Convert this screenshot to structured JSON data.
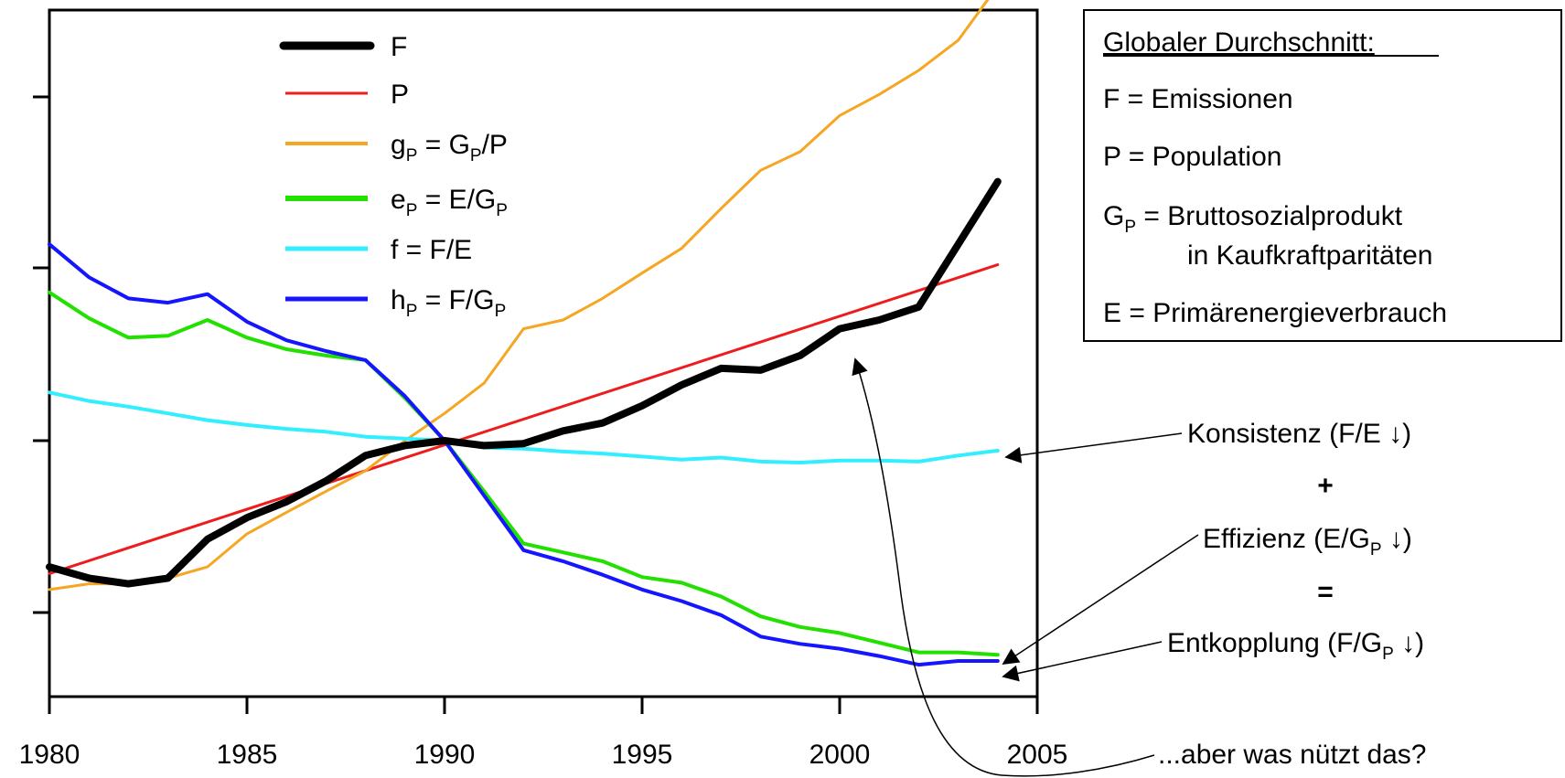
{
  "chart_data": {
    "type": "line",
    "xlim": [
      1980,
      2005
    ],
    "x_ticks": [
      "1980",
      "1985",
      "1990",
      "1995",
      "2000",
      "2005"
    ],
    "index_base_year": 1990,
    "index_base_value": 1.0,
    "y_scale": "log",
    "legend_position": "top-left inside",
    "grid": false,
    "series": [
      {
        "key": "F",
        "color": "#000000",
        "width": 8,
        "x": [
          1980,
          1981,
          1982,
          1983,
          1984,
          1985,
          1986,
          1987,
          1988,
          1989,
          1990,
          1991,
          1992,
          1993,
          1994,
          1995,
          1996,
          1997,
          1998,
          1999,
          2000,
          2001,
          2002,
          2003,
          2004
        ],
        "values": [
          0.88,
          0.87,
          0.865,
          0.87,
          0.905,
          0.925,
          0.94,
          0.96,
          0.985,
          0.995,
          1.0,
          0.995,
          0.997,
          1.01,
          1.018,
          1.036,
          1.058,
          1.076,
          1.074,
          1.09,
          1.12,
          1.13,
          1.145,
          1.22,
          1.3
        ]
      },
      {
        "key": "P",
        "color": "#ee1c1c",
        "width": 3,
        "x": [
          1980,
          2004
        ],
        "values": [
          0.874,
          1.195
        ]
      },
      {
        "key": "gP",
        "color": "#f5a623",
        "width": 3,
        "x": [
          1980,
          1981,
          1982,
          1983,
          1984,
          1985,
          1986,
          1987,
          1988,
          1989,
          1990,
          1991,
          1992,
          1993,
          1994,
          1995,
          1996,
          1997,
          1998,
          1999,
          2000,
          2001,
          2002,
          2003,
          2004
        ],
        "values": [
          0.86,
          0.865,
          0.865,
          0.87,
          0.88,
          0.91,
          0.93,
          0.95,
          0.97,
          1.0,
          1.028,
          1.06,
          1.12,
          1.13,
          1.155,
          1.185,
          1.215,
          1.265,
          1.315,
          1.34,
          1.39,
          1.42,
          1.455,
          1.5,
          1.585
        ]
      },
      {
        "key": "eP",
        "color": "#22e000",
        "width": 4,
        "x": [
          1980,
          1981,
          1982,
          1983,
          1984,
          1985,
          1986,
          1987,
          1988,
          1989,
          1990,
          1991,
          1992,
          1993,
          1994,
          1995,
          1996,
          1997,
          1998,
          1999,
          2000,
          2001,
          2002,
          2003,
          2004
        ],
        "values": [
          1.162,
          1.132,
          1.11,
          1.112,
          1.13,
          1.11,
          1.097,
          1.09,
          1.085,
          1.044,
          1.0,
          0.95,
          0.901,
          0.893,
          0.885,
          0.871,
          0.866,
          0.854,
          0.837,
          0.828,
          0.823,
          0.815,
          0.807,
          0.807,
          0.805
        ]
      },
      {
        "key": "f",
        "color": "#33eeff",
        "width": 4,
        "x": [
          1980,
          1981,
          1982,
          1983,
          1984,
          1985,
          1986,
          1987,
          1988,
          1989,
          1990,
          1991,
          1992,
          1993,
          1994,
          1995,
          1996,
          1997,
          1998,
          1999,
          2000,
          2001,
          2002,
          2003,
          2004
        ],
        "values": [
          1.05,
          1.041,
          1.035,
          1.028,
          1.021,
          1.016,
          1.012,
          1.009,
          1.004,
          1.002,
          1.0,
          0.993,
          0.992,
          0.989,
          0.987,
          0.984,
          0.981,
          0.983,
          0.979,
          0.978,
          0.98,
          0.98,
          0.979,
          0.985,
          0.99
        ]
      },
      {
        "key": "hP",
        "color": "#1515ff",
        "width": 4,
        "x": [
          1980,
          1981,
          1982,
          1983,
          1984,
          1985,
          1986,
          1987,
          1988,
          1989,
          1990,
          1991,
          1992,
          1993,
          1994,
          1995,
          1996,
          1997,
          1998,
          1999,
          2000,
          2001,
          2002,
          2003,
          2004
        ],
        "values": [
          1.22,
          1.18,
          1.155,
          1.15,
          1.16,
          1.128,
          1.107,
          1.095,
          1.085,
          1.046,
          1.0,
          0.946,
          0.895,
          0.885,
          0.873,
          0.86,
          0.85,
          0.838,
          0.82,
          0.814,
          0.81,
          0.804,
          0.797,
          0.8,
          0.8
        ]
      }
    ],
    "legend": [
      {
        "key": "F",
        "main": "F"
      },
      {
        "key": "P",
        "main": "P"
      },
      {
        "key": "gP",
        "main": "g",
        "sub": "P",
        "rest": " = G",
        "sub2": "P",
        "rest2": "/P"
      },
      {
        "key": "eP",
        "main": "e",
        "sub": "P",
        "rest": " = E/G",
        "sub2": "P",
        "rest2": ""
      },
      {
        "key": "f",
        "main": "f = F/E"
      },
      {
        "key": "hP",
        "main": "h",
        "sub": "P",
        "rest": " = F/G",
        "sub2": "P",
        "rest2": ""
      }
    ]
  },
  "info_box": {
    "heading": "Globaler Durchschnitt:",
    "line_F": "F = Emissionen",
    "line_P": "P = Population",
    "line_G_main": "G",
    "line_G_sub": "P",
    "line_G_rest": " = Bruttosozialprodukt",
    "line_G_cont": "in Kaufkraftparitäten",
    "line_E": "E = Primärenergieverbrauch"
  },
  "annotations": {
    "konsistenz": "Konsistenz (F/E ↓)",
    "plus": "+",
    "effizienz_a": "Effizienz (E/G",
    "effizienz_sub": "P",
    "effizienz_b": " ↓)",
    "equals": "=",
    "entkopplung_a": "Entkopplung (F/G",
    "entkopplung_sub": "P",
    "entkopplung_b": " ↓)",
    "aber": "...aber was nützt das?"
  }
}
